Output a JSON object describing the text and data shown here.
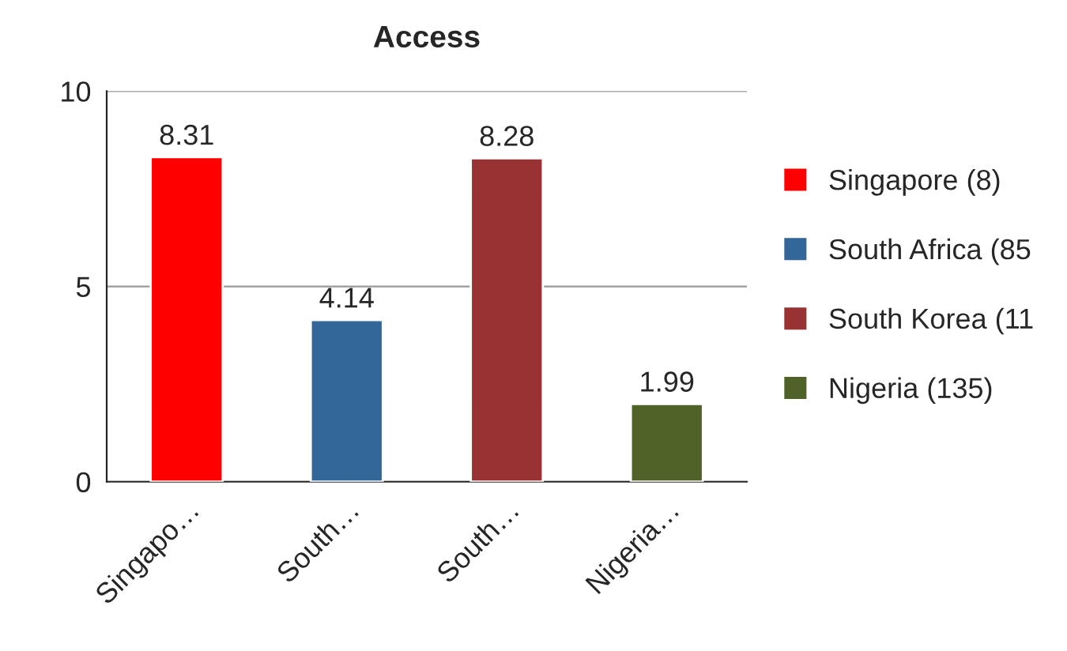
{
  "chart_data": {
    "type": "bar",
    "title": "Access",
    "categories": [
      "Singapo…",
      "South…",
      "South…",
      "Nigeria…"
    ],
    "series": [
      {
        "name": "Singapore (8)",
        "color": "#ff0000",
        "values": [
          8.31,
          null,
          null,
          null
        ]
      },
      {
        "name": "South Africa (85",
        "color": "#336699",
        "values": [
          null,
          4.14,
          null,
          null
        ]
      },
      {
        "name": "South Korea (11",
        "color": "#993333",
        "values": [
          null,
          null,
          8.28,
          null
        ]
      },
      {
        "name": "Nigeria (135)",
        "color": "#4f6228",
        "values": [
          null,
          null,
          null,
          1.99
        ]
      }
    ],
    "ylim": [
      0,
      10
    ],
    "yticks": [
      0,
      5,
      10
    ],
    "grid": "y",
    "legend": "right",
    "data_labels": true
  }
}
